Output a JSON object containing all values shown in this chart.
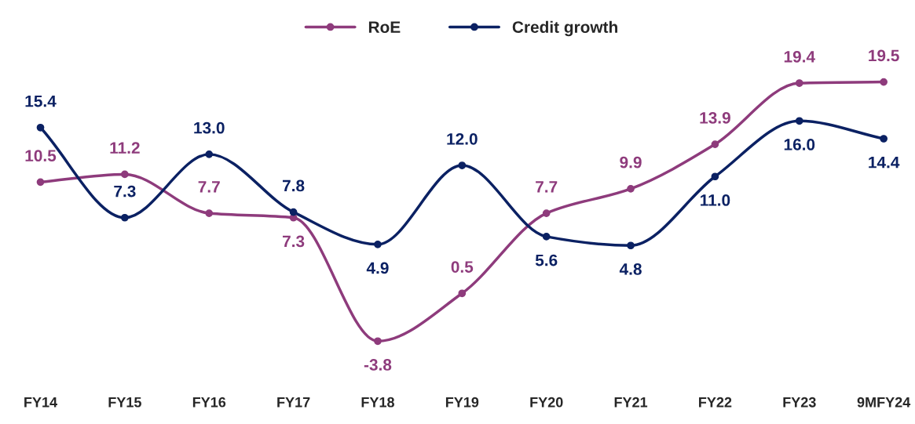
{
  "chart_data": {
    "type": "line",
    "categories": [
      "FY14",
      "FY15",
      "FY16",
      "FY17",
      "FY18",
      "FY19",
      "FY20",
      "FY21",
      "FY22",
      "FY23",
      "9MFY24"
    ],
    "series": [
      {
        "name": "RoE",
        "color": "#8e3b7c",
        "values": [
          10.5,
          11.2,
          7.7,
          7.3,
          -3.8,
          0.5,
          7.7,
          9.9,
          13.9,
          19.4,
          19.5
        ],
        "value_labels": [
          "10.5",
          "11.2",
          "7.7",
          "7.3",
          "-3.8",
          "0.5",
          "7.7",
          "9.9",
          "13.9",
          "19.4",
          "19.5"
        ]
      },
      {
        "name": "Credit growth",
        "color": "#0b2163",
        "values": [
          15.4,
          7.3,
          13.0,
          7.8,
          4.9,
          12.0,
          5.6,
          4.8,
          11.0,
          16.0,
          14.4
        ],
        "value_labels": [
          "15.4",
          "7.3",
          "13.0",
          "7.8",
          "4.9",
          "12.0",
          "5.6",
          "4.8",
          "11.0",
          "16.0",
          "14.4"
        ]
      }
    ],
    "legend": "top",
    "marker": "circle",
    "line_style": "solid",
    "grid": false
  }
}
